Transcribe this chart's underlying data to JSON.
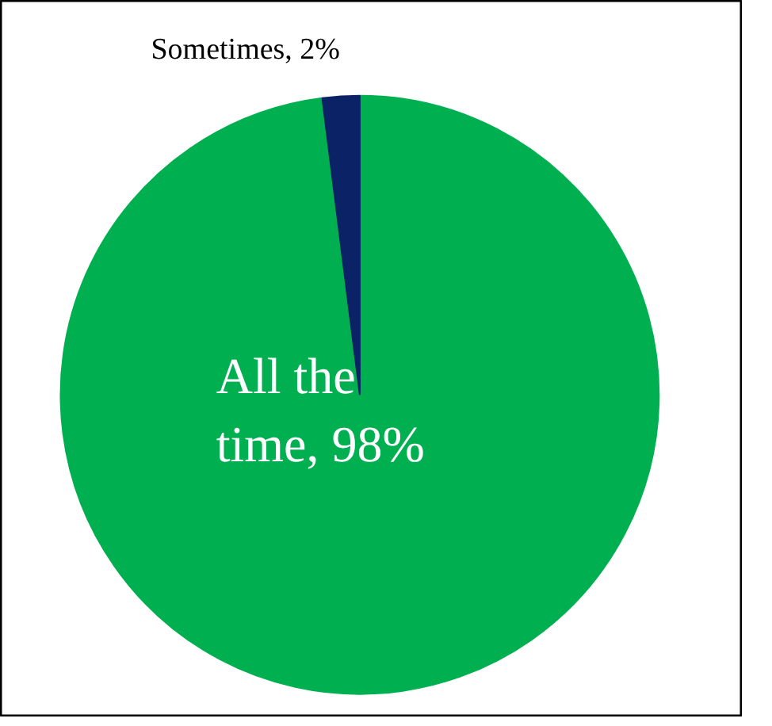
{
  "chart_data": {
    "type": "pie",
    "categories": [
      "All the time",
      "Sometimes"
    ],
    "values": [
      98,
      2
    ],
    "colors": [
      "#00b050",
      "#0b2266"
    ],
    "value_labels": [
      "98%",
      "2%"
    ]
  }
}
